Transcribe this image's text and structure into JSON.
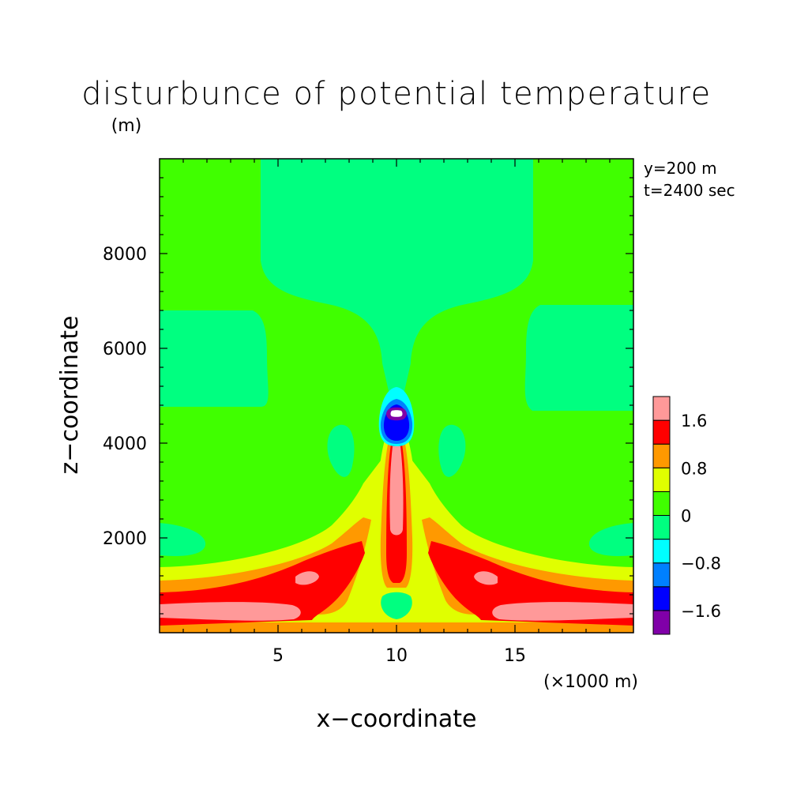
{
  "chart_data": {
    "type": "heatmap",
    "subtype": "filled-contour",
    "title": "disturbunce of potential temperature",
    "ylabel_unit": "(m)",
    "xlabel": "x−coordinate",
    "ylabel": "z−coordinate",
    "xunit": "(×1000 m)",
    "annotations": [
      "y=200 m",
      "t=2400 sec"
    ],
    "xlim": [
      0,
      20
    ],
    "ylim": [
      0,
      10000
    ],
    "x_ticks": [
      5,
      10,
      15
    ],
    "x_tick_labels": [
      "5",
      "10",
      "15"
    ],
    "y_ticks": [
      2000,
      4000,
      6000,
      8000
    ],
    "y_tick_labels": [
      "2000",
      "4000",
      "6000",
      "8000"
    ],
    "colorbar": {
      "levels": [
        -2.0,
        -1.6,
        -1.2,
        -0.8,
        -0.4,
        0,
        0.4,
        0.8,
        1.2,
        1.6,
        2.0
      ],
      "labels": [
        "−1.6",
        "−0.8",
        "0",
        "0.8",
        "1.6"
      ],
      "label_values": [
        -1.6,
        -0.8,
        0,
        0.8,
        1.6
      ],
      "colors": [
        "#8000a8",
        "#0000ff",
        "#0080ff",
        "#00ffff",
        "#00ff80",
        "#40ff00",
        "#e0ff00",
        "#ff9900",
        "#ff0000",
        "#ff9999"
      ]
    },
    "features": [
      {
        "name": "background",
        "value_range": [
          0,
          0.4
        ]
      },
      {
        "name": "upper slightly negative column",
        "value_range": [
          -0.4,
          0
        ]
      },
      {
        "name": "central warm plume",
        "x": 10,
        "z_range": [
          1100,
          4100
        ],
        "peak": 2.0
      },
      {
        "name": "cold core above plume",
        "x": 10,
        "z": 4600,
        "min": -2.0
      },
      {
        "name": "low-level warm layers",
        "z_range": [
          0,
          1300
        ],
        "peak": 2.0
      }
    ],
    "grid": false
  }
}
